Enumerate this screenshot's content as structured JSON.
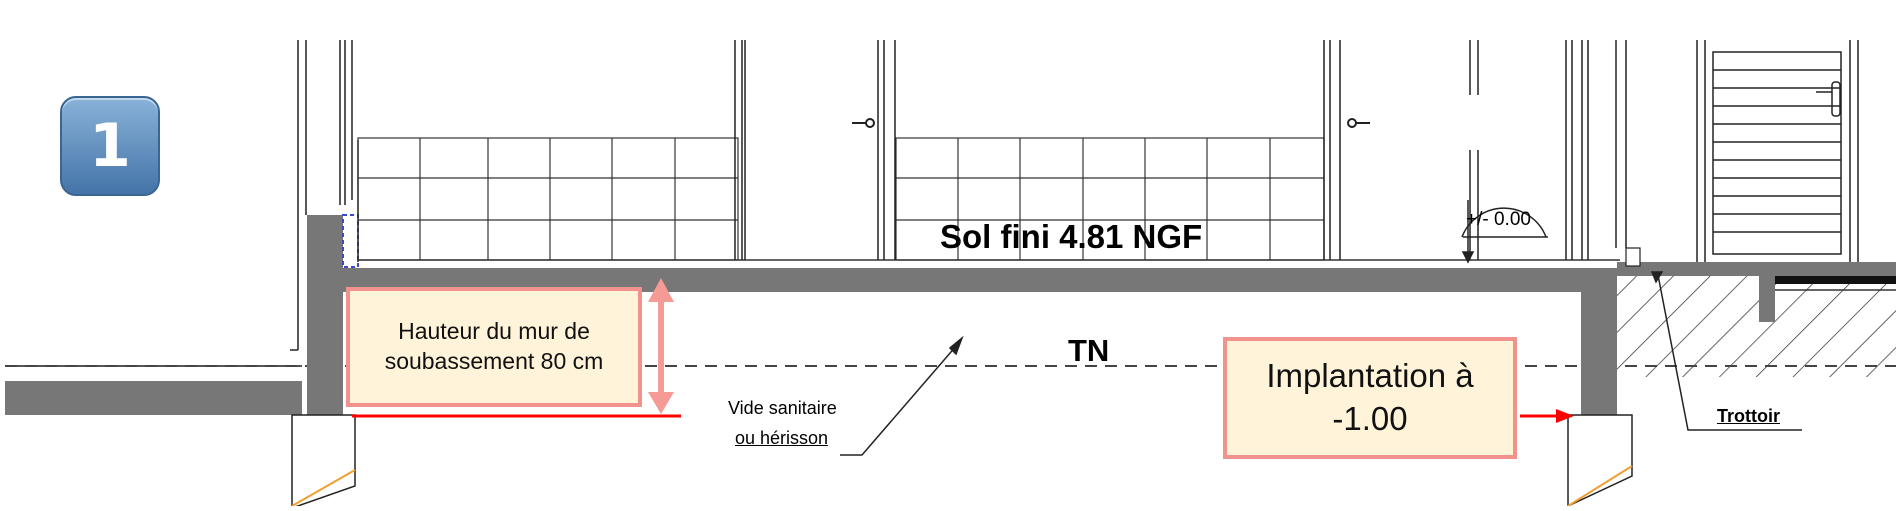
{
  "badge": {
    "number": "1"
  },
  "labels": {
    "floor": "Sol fini 4.81 NGF",
    "natural_ground": "TN",
    "crawl_space_line1": "Vide sanitaire",
    "crawl_space_line2": "ou hérisson",
    "sidewalk": "Trottoir",
    "level_mark": "+/- 0.00"
  },
  "callouts": {
    "wall_height": "Hauteur du mur de soubassement 80 cm",
    "implantation_line1": "Implantation à",
    "implantation_line2": "-1.00"
  },
  "colors": {
    "concrete": "#777777",
    "callout_border": "#f1928c",
    "callout_fill": "#fff4da",
    "marker_red": "#ff0000",
    "badge_blue": "#4474a8",
    "footing_edge": "#f0a030",
    "insulation_blue": "#3a4ad0"
  }
}
